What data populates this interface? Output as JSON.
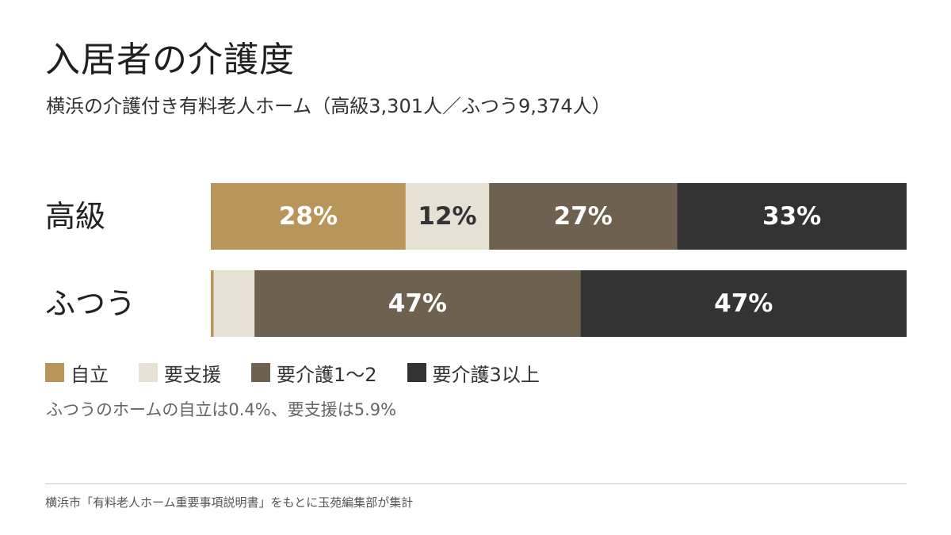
{
  "title": "入居者の介護度",
  "subtitle": "横浜の介護付き有料老人ホーム（高級3,301人／ふつう9,374人）",
  "colors": {
    "自立": "#b8955a",
    "要支援": "#e6e0d5",
    "要介護1〜2": "#6e6150",
    "要介護3以上": "#333333"
  },
  "chart_data": {
    "type": "bar",
    "orientation": "horizontal",
    "stacked": true,
    "percent_scale": true,
    "categories": [
      "高級",
      "ふつう"
    ],
    "series": [
      {
        "name": "自立",
        "values": [
          28,
          0.4
        ],
        "labels": [
          "28%",
          ""
        ]
      },
      {
        "name": "要支援",
        "values": [
          12,
          5.9
        ],
        "labels": [
          "12%",
          ""
        ]
      },
      {
        "name": "要介護1〜2",
        "values": [
          27,
          47
        ],
        "labels": [
          "27%",
          "47%"
        ]
      },
      {
        "name": "要介護3以上",
        "values": [
          33,
          47
        ],
        "labels": [
          "33%",
          "47%"
        ]
      }
    ],
    "title": "入居者の介護度",
    "xlabel": "",
    "ylabel": "",
    "xlim": [
      0,
      100
    ],
    "grid": false,
    "legend": "bottom-left"
  },
  "legend": [
    {
      "label": "自立",
      "color": "#b8955a"
    },
    {
      "label": "要支援",
      "color": "#e6e0d5"
    },
    {
      "label": "要介護1〜2",
      "color": "#6e6150"
    },
    {
      "label": "要介護3以上",
      "color": "#333333"
    }
  ],
  "note": "ふつうのホームの自立は0.4%、要支援は5.9%",
  "source": "横浜市「有料老人ホーム重要事項説明書」をもとに玉苑編集部が集計"
}
